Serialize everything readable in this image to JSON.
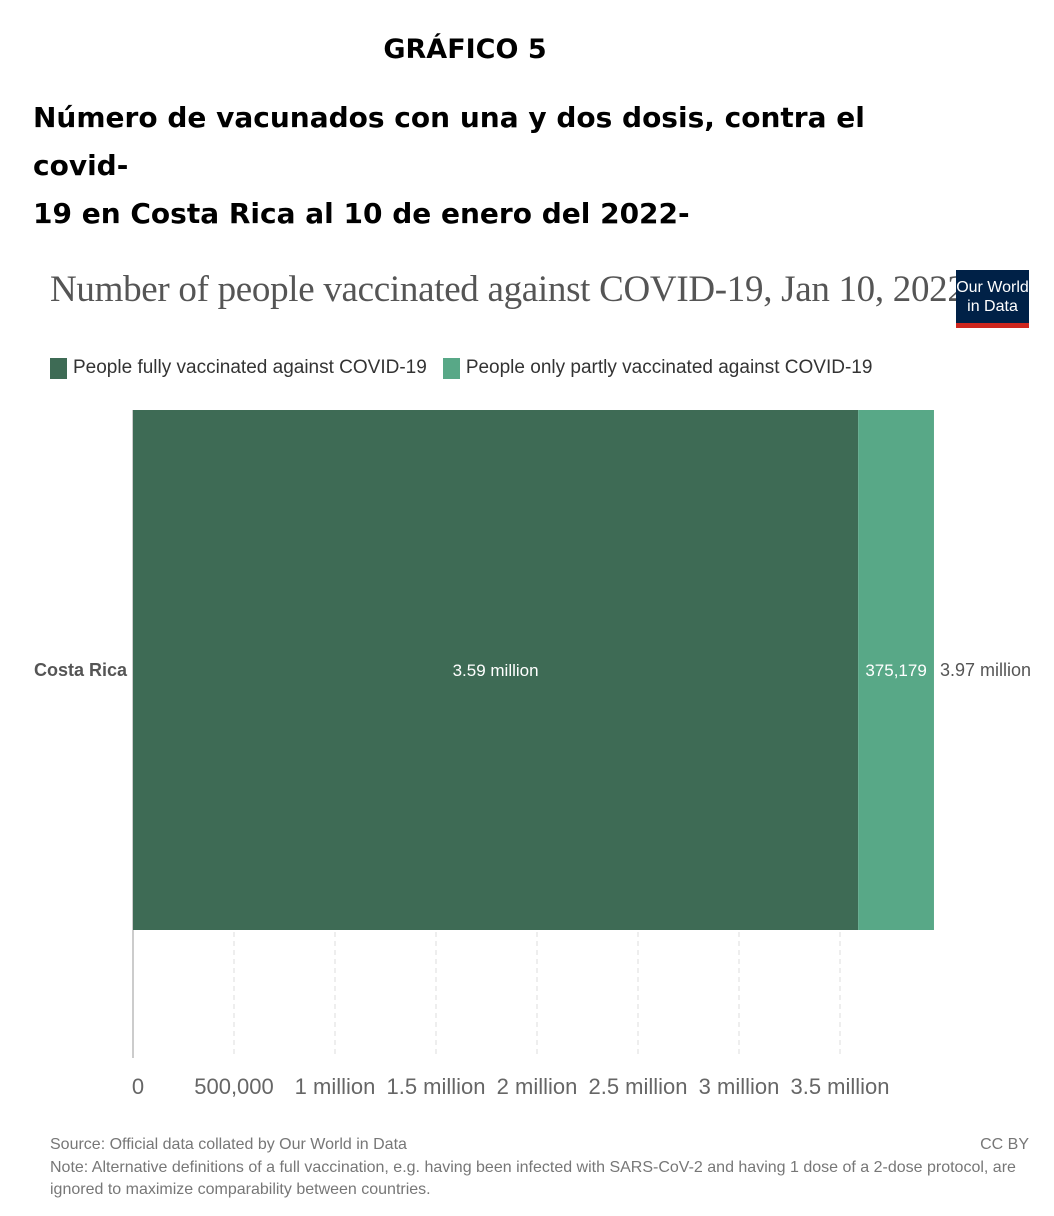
{
  "document": {
    "label": "GRÁFICO 5",
    "title_line1": "Número de vacunados con una y dos dosis, contra el covid-",
    "title_line2": "19 en Costa Rica al 10 de enero del 2022-"
  },
  "logo": {
    "line1": "Our World",
    "line2": "in Data"
  },
  "chart_data": {
    "type": "bar",
    "orientation": "horizontal",
    "stacked": true,
    "title": "Number of people vaccinated against COVID-19, Jan 10, 2022",
    "categories": [
      "Costa Rica"
    ],
    "series": [
      {
        "name": "People fully vaccinated against COVID-19",
        "values": [
          3590000
        ],
        "label": "3.59 million",
        "color": "#3e6b55"
      },
      {
        "name": "People only partly vaccinated against COVID-19",
        "values": [
          375179
        ],
        "label": "375,179",
        "color": "#58a887"
      }
    ],
    "totals": [
      "3.97 million"
    ],
    "xlim": [
      0,
      4000000
    ],
    "xticks": [
      {
        "value": 0,
        "label": "0"
      },
      {
        "value": 500000,
        "label": "500,000"
      },
      {
        "value": 1000000,
        "label": "1 million"
      },
      {
        "value": 1500000,
        "label": "1.5 million"
      },
      {
        "value": 2000000,
        "label": "2 million"
      },
      {
        "value": 2500000,
        "label": "2.5 million"
      },
      {
        "value": 3000000,
        "label": "3 million"
      },
      {
        "value": 3500000,
        "label": "3.5 million"
      }
    ],
    "grid": true,
    "legend": "top-left"
  },
  "footer": {
    "source": "Source: Official data collated by Our World in Data",
    "note_line1": "Note: Alternative definitions of a full vaccination, e.g. having been infected with SARS-CoV-2 and having 1 dose of a 2-dose protocol, are",
    "note_line2": "ignored to maximize comparability between countries.",
    "license": "CC BY"
  }
}
